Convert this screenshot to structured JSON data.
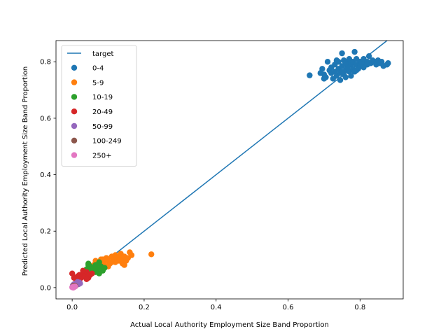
{
  "chart_data": {
    "type": "scatter",
    "title": "",
    "xlabel": "Actual Local Authority Employment Size Band Proportion",
    "ylabel": "Predicted Local Authority Employment Size Band Proportion",
    "xlim": [
      -0.045,
      0.92
    ],
    "ylim": [
      -0.04,
      0.875
    ],
    "x_ticks": [
      0.0,
      0.2,
      0.4,
      0.6,
      0.8
    ],
    "x_tick_labels": [
      "0.0",
      "0.2",
      "0.4",
      "0.6",
      "0.8"
    ],
    "y_ticks": [
      0.0,
      0.2,
      0.4,
      0.6,
      0.8
    ],
    "y_tick_labels": [
      "0.0",
      "0.2",
      "0.4",
      "0.6",
      "0.8"
    ],
    "grid": false,
    "legend_position": "top-left",
    "target_line": {
      "name": "target",
      "color": "#1f77b4",
      "x": [
        0.0,
        0.875
      ],
      "y": [
        0.0,
        0.875
      ]
    },
    "series": [
      {
        "name": "0-4",
        "color": "#1f77b4",
        "points": [
          [
            0.66,
            0.752
          ],
          [
            0.69,
            0.76
          ],
          [
            0.695,
            0.775
          ],
          [
            0.7,
            0.755
          ],
          [
            0.705,
            0.745
          ],
          [
            0.71,
            0.8
          ],
          [
            0.715,
            0.77
          ],
          [
            0.72,
            0.76
          ],
          [
            0.72,
            0.78
          ],
          [
            0.725,
            0.74
          ],
          [
            0.73,
            0.79
          ],
          [
            0.73,
            0.765
          ],
          [
            0.735,
            0.75
          ],
          [
            0.74,
            0.8
          ],
          [
            0.74,
            0.775
          ],
          [
            0.745,
            0.735
          ],
          [
            0.745,
            0.76
          ],
          [
            0.75,
            0.83
          ],
          [
            0.75,
            0.785
          ],
          [
            0.755,
            0.755
          ],
          [
            0.755,
            0.805
          ],
          [
            0.76,
            0.77
          ],
          [
            0.76,
            0.745
          ],
          [
            0.765,
            0.795
          ],
          [
            0.765,
            0.78
          ],
          [
            0.77,
            0.765
          ],
          [
            0.77,
            0.81
          ],
          [
            0.775,
            0.75
          ],
          [
            0.775,
            0.79
          ],
          [
            0.78,
            0.775
          ],
          [
            0.78,
            0.8
          ],
          [
            0.785,
            0.835
          ],
          [
            0.785,
            0.765
          ],
          [
            0.79,
            0.79
          ],
          [
            0.79,
            0.81
          ],
          [
            0.795,
            0.775
          ],
          [
            0.8,
            0.8
          ],
          [
            0.8,
            0.785
          ],
          [
            0.805,
            0.795
          ],
          [
            0.81,
            0.81
          ],
          [
            0.815,
            0.79
          ],
          [
            0.82,
            0.8
          ],
          [
            0.825,
            0.82
          ],
          [
            0.83,
            0.795
          ],
          [
            0.835,
            0.805
          ],
          [
            0.84,
            0.8
          ],
          [
            0.845,
            0.79
          ],
          [
            0.85,
            0.805
          ],
          [
            0.855,
            0.795
          ],
          [
            0.86,
            0.8
          ],
          [
            0.865,
            0.785
          ],
          [
            0.875,
            0.79
          ],
          [
            0.878,
            0.795
          ],
          [
            0.7,
            0.74
          ],
          [
            0.735,
            0.805
          ],
          [
            0.76,
            0.795
          ],
          [
            0.79,
            0.77
          ],
          [
            0.81,
            0.78
          ],
          [
            0.82,
            0.79
          ],
          [
            0.75,
            0.765
          ]
        ]
      },
      {
        "name": "5-9",
        "color": "#ff7f0e",
        "points": [
          [
            0.06,
            0.08
          ],
          [
            0.065,
            0.095
          ],
          [
            0.07,
            0.075
          ],
          [
            0.075,
            0.085
          ],
          [
            0.08,
            0.1
          ],
          [
            0.085,
            0.09
          ],
          [
            0.09,
            0.08
          ],
          [
            0.095,
            0.105
          ],
          [
            0.1,
            0.095
          ],
          [
            0.105,
            0.085
          ],
          [
            0.11,
            0.11
          ],
          [
            0.115,
            0.1
          ],
          [
            0.12,
            0.09
          ],
          [
            0.12,
            0.115
          ],
          [
            0.125,
            0.105
          ],
          [
            0.13,
            0.095
          ],
          [
            0.135,
            0.12
          ],
          [
            0.14,
            0.1
          ],
          [
            0.14,
            0.085
          ],
          [
            0.145,
            0.11
          ],
          [
            0.15,
            0.095
          ],
          [
            0.155,
            0.105
          ],
          [
            0.16,
            0.125
          ],
          [
            0.165,
            0.115
          ],
          [
            0.145,
            0.08
          ],
          [
            0.22,
            0.118
          ],
          [
            0.1,
            0.075
          ],
          [
            0.11,
            0.09
          ],
          [
            0.13,
            0.11
          ],
          [
            0.085,
            0.1
          ]
        ]
      },
      {
        "name": "10-19",
        "color": "#2ca02c",
        "points": [
          [
            0.04,
            0.065
          ],
          [
            0.045,
            0.08
          ],
          [
            0.05,
            0.075
          ],
          [
            0.055,
            0.06
          ],
          [
            0.06,
            0.07
          ],
          [
            0.065,
            0.08
          ],
          [
            0.07,
            0.065
          ],
          [
            0.075,
            0.05
          ],
          [
            0.075,
            0.09
          ],
          [
            0.08,
            0.075
          ],
          [
            0.085,
            0.06
          ],
          [
            0.09,
            0.07
          ],
          [
            0.045,
            0.085
          ],
          [
            0.065,
            0.055
          ]
        ]
      },
      {
        "name": "20-49",
        "color": "#d62728",
        "points": [
          [
            0.0,
            0.05
          ],
          [
            0.005,
            0.035
          ],
          [
            0.01,
            0.03
          ],
          [
            0.015,
            0.04
          ],
          [
            0.02,
            0.045
          ],
          [
            0.025,
            0.035
          ],
          [
            0.03,
            0.05
          ],
          [
            0.035,
            0.04
          ],
          [
            0.04,
            0.055
          ],
          [
            0.045,
            0.035
          ],
          [
            0.05,
            0.045
          ],
          [
            0.055,
            0.05
          ],
          [
            0.03,
            0.06
          ],
          [
            0.04,
            0.03
          ],
          [
            0.02,
            0.025
          ]
        ]
      },
      {
        "name": "50-99",
        "color": "#9467bd",
        "points": [
          [
            0.002,
            0.008
          ],
          [
            0.005,
            0.012
          ],
          [
            0.008,
            0.005
          ],
          [
            0.01,
            0.015
          ],
          [
            0.012,
            0.01
          ],
          [
            0.015,
            0.02
          ],
          [
            0.018,
            0.012
          ],
          [
            0.02,
            0.018
          ],
          [
            0.022,
            0.015
          ],
          [
            0.006,
            0.004
          ]
        ]
      },
      {
        "name": "100-249",
        "color": "#8c564b",
        "points": [
          [
            0.001,
            0.003
          ],
          [
            0.003,
            0.006
          ],
          [
            0.005,
            0.004
          ],
          [
            0.007,
            0.007
          ],
          [
            0.009,
            0.005
          ],
          [
            0.004,
            0.002
          ]
        ]
      },
      {
        "name": "250+",
        "color": "#e377c2",
        "points": [
          [
            0.0,
            0.001
          ],
          [
            0.002,
            0.002
          ],
          [
            0.004,
            0.003
          ],
          [
            0.006,
            0.002
          ],
          [
            0.008,
            0.004
          ],
          [
            0.003,
            0.0
          ]
        ]
      }
    ]
  }
}
